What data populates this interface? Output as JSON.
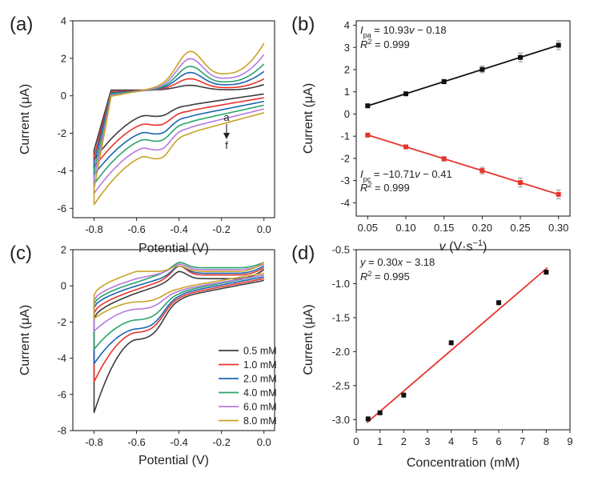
{
  "chart_data": [
    {
      "type": "line",
      "panel_label": "(a)",
      "xlabel": "Potential (V)",
      "ylabel": "Current (μA)",
      "xlim": [
        -0.9,
        0.05
      ],
      "ylim": [
        -6.5,
        4
      ],
      "xticks": [
        "-0.8",
        "-0.6",
        "-0.4",
        "-0.2",
        "0.0"
      ],
      "yticks": [
        "-6",
        "-4",
        "-2",
        "0",
        "2",
        "4"
      ],
      "annotation_top": "a",
      "annotation_bottom": "f",
      "series": [
        {
          "color": "#3d3d3d",
          "top_start": 0.3,
          "peak_a": 0.4,
          "top_end": 0.6,
          "bottom_start": -3.4,
          "peak_c": -1.2,
          "plateau_c": -0.5,
          "bottom_end": 0.1
        },
        {
          "color": "#e8332b",
          "top_start": 0.2,
          "peak_a": 0.9,
          "top_end": 0.9,
          "bottom_start": -3.8,
          "peak_c": -1.7,
          "plateau_c": -0.8,
          "bottom_end": -0.1
        },
        {
          "color": "#1a66b3",
          "top_start": 0.1,
          "peak_a": 1.4,
          "top_end": 1.3,
          "bottom_start": -4.2,
          "peak_c": -2.2,
          "plateau_c": -1.1,
          "bottom_end": -0.3
        },
        {
          "color": "#2aa36b",
          "top_start": 0.0,
          "peak_a": 1.9,
          "top_end": 1.7,
          "bottom_start": -4.7,
          "peak_c": -2.6,
          "plateau_c": -1.4,
          "bottom_end": -0.5
        },
        {
          "color": "#b57be0",
          "top_start": -0.1,
          "peak_a": 2.5,
          "top_end": 2.2,
          "bottom_start": -5.2,
          "peak_c": -3.1,
          "plateau_c": -1.7,
          "bottom_end": -0.7
        },
        {
          "color": "#c9a227",
          "top_start": -0.2,
          "peak_a": 3.1,
          "top_end": 2.8,
          "bottom_start": -5.8,
          "peak_c": -3.6,
          "plateau_c": -2.0,
          "bottom_end": -0.9
        }
      ]
    },
    {
      "type": "scatter",
      "panel_label": "(b)",
      "xlabel_symbol": "v",
      "xlabel_unit": "(V·s",
      "xlabel_exp": "−1",
      "xlabel_close": ")",
      "ylabel": "Current (μA)",
      "xlim": [
        0.035,
        0.315
      ],
      "ylim": [
        -4.6,
        4.2
      ],
      "xticks": [
        "0.05",
        "0.10",
        "0.15",
        "0.20",
        "0.25",
        "0.30"
      ],
      "yticks": [
        "-4",
        "-3",
        "-2",
        "-1",
        "0",
        "1",
        "2",
        "3",
        "4"
      ],
      "x": [
        0.05,
        0.1,
        0.15,
        0.2,
        0.25,
        0.3
      ],
      "series": [
        {
          "color": "#111111",
          "values": [
            0.37,
            0.91,
            1.46,
            2.01,
            2.55,
            3.1
          ],
          "errors": [
            0.05,
            0.05,
            0.1,
            0.15,
            0.2,
            0.2
          ],
          "fit": [
            10.93,
            -0.18
          ],
          "eq_sym": "I",
          "eq_sub": "pa",
          "eq_rest": " = 10.93",
          "eq_var": "v",
          "eq_tail": " − 0.18",
          "r2_sym": "R",
          "r2_sup": "2",
          "r2_val": " = 0.999"
        },
        {
          "color": "#e8332b",
          "values": [
            -0.95,
            -1.48,
            -2.02,
            -2.55,
            -3.09,
            -3.62
          ],
          "errors": [
            0.05,
            0.07,
            0.1,
            0.15,
            0.2,
            0.2
          ],
          "fit": [
            -10.71,
            -0.41
          ],
          "eq_sym": "I",
          "eq_sub": "pc",
          "eq_rest": " = −10.71",
          "eq_var": "v",
          "eq_tail": " − 0.41",
          "r2_sym": "R",
          "r2_sup": "2",
          "r2_val": " = 0.999"
        }
      ]
    },
    {
      "type": "line",
      "panel_label": "(c)",
      "xlabel": "Potential (V)",
      "ylabel": "Current (μA)",
      "xlim": [
        -0.9,
        0.05
      ],
      "ylim": [
        -8,
        2
      ],
      "xticks": [
        "-0.8",
        "-0.6",
        "-0.4",
        "-0.2",
        "0.0"
      ],
      "yticks": [
        "-8",
        "-6",
        "-4",
        "-2",
        "0",
        "2"
      ],
      "legend_position": "bottom-right",
      "series": [
        {
          "name": "0.5 mM",
          "color": "#3d3d3d",
          "bottom_start": -7.0,
          "peak_c": -3.0,
          "plateau_c": -0.6,
          "bottom_end": 0.3,
          "top_start": -1.8,
          "shoulder": -0.4,
          "peak_a": 0.8,
          "plateau_a": 0.4,
          "top_end": 0.9
        },
        {
          "name": "1.0 mM",
          "color": "#e8332b",
          "bottom_start": -5.3,
          "peak_c": -2.6,
          "plateau_c": -0.5,
          "bottom_end": 0.4,
          "top_start": -1.5,
          "shoulder": -0.2,
          "peak_a": 1.1,
          "plateau_a": 0.6,
          "top_end": 1.0
        },
        {
          "name": "2.0 mM",
          "color": "#1a66b3",
          "bottom_start": -4.3,
          "peak_c": -2.4,
          "plateau_c": -0.4,
          "bottom_end": 0.5,
          "top_start": -1.2,
          "shoulder": 0.0,
          "peak_a": 1.1,
          "plateau_a": 0.7,
          "top_end": 1.1
        },
        {
          "name": "4.0 mM",
          "color": "#2aa36b",
          "bottom_start": -3.5,
          "peak_c": -1.9,
          "plateau_c": -0.3,
          "bottom_end": 0.6,
          "top_start": -1.0,
          "shoulder": 0.2,
          "peak_a": 1.3,
          "plateau_a": 1.0,
          "top_end": 1.3
        },
        {
          "name": "6.0 mM",
          "color": "#b57be0",
          "bottom_start": -2.5,
          "peak_c": -1.3,
          "plateau_c": -0.2,
          "bottom_end": 0.6,
          "top_start": -0.8,
          "shoulder": 0.4,
          "peak_a": 1.2,
          "plateau_a": 0.9,
          "top_end": 1.2
        },
        {
          "name": "8.0 mM",
          "color": "#c9a227",
          "bottom_start": -1.8,
          "peak_c": -0.9,
          "plateau_c": -0.1,
          "bottom_end": 0.7,
          "top_start": -0.5,
          "shoulder": 0.8,
          "peak_a": 1.1,
          "plateau_a": 0.8,
          "top_end": 1.3
        }
      ]
    },
    {
      "type": "scatter",
      "panel_label": "(d)",
      "xlabel": "Concentration (mM)",
      "ylabel": "Current (μA)",
      "xlim": [
        0,
        9
      ],
      "ylim": [
        -3.15,
        -0.5
      ],
      "xticks": [
        "0",
        "1",
        "2",
        "3",
        "4",
        "5",
        "6",
        "7",
        "8",
        "9"
      ],
      "yticks": [
        "-3.0",
        "-2.5",
        "-2.0",
        "-1.5",
        "-1.0",
        "-0.5"
      ],
      "x": [
        0.5,
        1.0,
        2.0,
        4.0,
        6.0,
        8.0
      ],
      "values": [
        -2.99,
        -2.9,
        -2.64,
        -1.87,
        -1.28,
        -0.83
      ],
      "errors": [
        0.04,
        0.03,
        0.04,
        0.04,
        0.04,
        0.04
      ],
      "fit": [
        0.3,
        -3.18
      ],
      "marker_color": "#111111",
      "fit_color": "#e8332b",
      "eq_var1": "y",
      "eq_mid": " = 0.30",
      "eq_var2": "x",
      "eq_tail": " − 3.18",
      "r2_sym": "R",
      "r2_sup": "2",
      "r2_val": " = 0.995"
    }
  ]
}
